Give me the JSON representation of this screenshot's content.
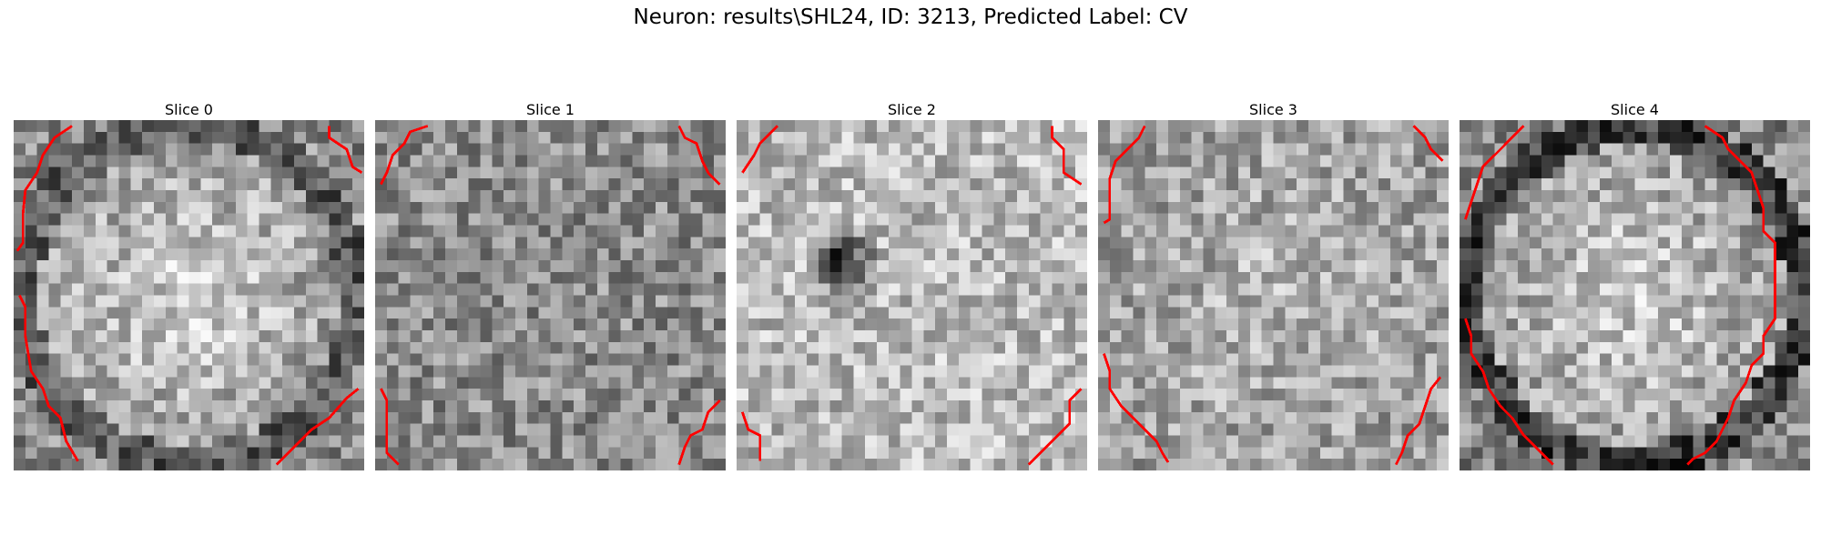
{
  "title": "Neuron: results\\SHL24, ID: 3213, Predicted Label: CV",
  "panels": [
    {
      "title": "Slice 0",
      "seed": 11,
      "style": "ring"
    },
    {
      "title": "Slice 1",
      "seed": 23,
      "style": "noise"
    },
    {
      "title": "Slice 2",
      "seed": 37,
      "style": "bright-dark"
    },
    {
      "title": "Slice 3",
      "seed": 51,
      "style": "bright"
    },
    {
      "title": "Slice 4",
      "seed": 67,
      "style": "ring-strong"
    }
  ],
  "colors": {
    "contour": "#ff0000",
    "background": "#ffffff"
  }
}
